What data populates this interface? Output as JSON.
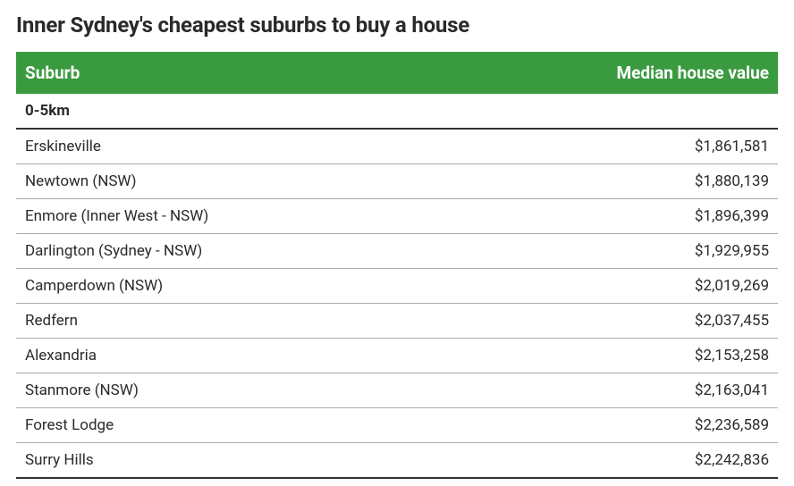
{
  "title": "Inner Sydney's cheapest suburbs to buy a house",
  "table": {
    "type": "table",
    "header_bg": "#3a9a3f",
    "header_text_color": "#ffffff",
    "row_border_color": "#adadad",
    "section_border_color": "#333333",
    "text_color": "#2b2b2b",
    "title_fontsize": 24,
    "header_fontsize": 19,
    "cell_fontsize": 17,
    "columns": [
      {
        "label": "Suburb",
        "align": "left"
      },
      {
        "label": "Median house value",
        "align": "right"
      }
    ],
    "section_label": "0-5km",
    "rows": [
      {
        "suburb": "Erskineville",
        "value": "$1,861,581"
      },
      {
        "suburb": "Newtown (NSW)",
        "value": "$1,880,139"
      },
      {
        "suburb": "Enmore (Inner West - NSW)",
        "value": "$1,896,399"
      },
      {
        "suburb": "Darlington (Sydney - NSW)",
        "value": "$1,929,955"
      },
      {
        "suburb": "Camperdown (NSW)",
        "value": "$2,019,269"
      },
      {
        "suburb": "Redfern",
        "value": "$2,037,455"
      },
      {
        "suburb": "Alexandria",
        "value": "$2,153,258"
      },
      {
        "suburb": "Stanmore (NSW)",
        "value": "$2,163,041"
      },
      {
        "suburb": "Forest Lodge",
        "value": "$2,236,589"
      },
      {
        "suburb": "Surry Hills",
        "value": "$2,242,836"
      }
    ]
  }
}
